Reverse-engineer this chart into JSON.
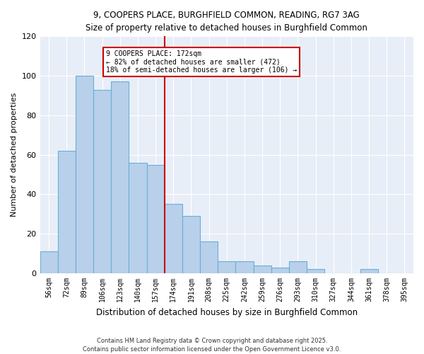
{
  "title1": "9, COOPERS PLACE, BURGHFIELD COMMON, READING, RG7 3AG",
  "title2": "Size of property relative to detached houses in Burghfield Common",
  "xlabel": "Distribution of detached houses by size in Burghfield Common",
  "ylabel": "Number of detached properties",
  "bin_labels": [
    "56sqm",
    "72sqm",
    "89sqm",
    "106sqm",
    "123sqm",
    "140sqm",
    "157sqm",
    "174sqm",
    "191sqm",
    "208sqm",
    "225sqm",
    "242sqm",
    "259sqm",
    "276sqm",
    "293sqm",
    "310sqm",
    "327sqm",
    "344sqm",
    "361sqm",
    "378sqm",
    "395sqm"
  ],
  "bin_values": [
    11,
    62,
    100,
    93,
    97,
    56,
    55,
    35,
    29,
    16,
    6,
    6,
    4,
    3,
    6,
    2,
    0,
    0,
    2,
    0,
    0
  ],
  "bar_color": "#b8d0ea",
  "bar_edge_color": "#6aaed6",
  "vline_color": "#cc0000",
  "annotation_title": "9 COOPERS PLACE: 172sqm",
  "annotation_line1": "← 82% of detached houses are smaller (472)",
  "annotation_line2": "18% of semi-detached houses are larger (106) →",
  "annotation_box_color": "#cc0000",
  "ylim": [
    0,
    120
  ],
  "yticks": [
    0,
    20,
    40,
    60,
    80,
    100,
    120
  ],
  "footnote1": "Contains HM Land Registry data © Crown copyright and database right 2025.",
  "footnote2": "Contains public sector information licensed under the Open Government Licence v3.0.",
  "bg_color": "#ffffff",
  "plot_bg_color": "#e8eef7",
  "grid_color": "#ffffff"
}
